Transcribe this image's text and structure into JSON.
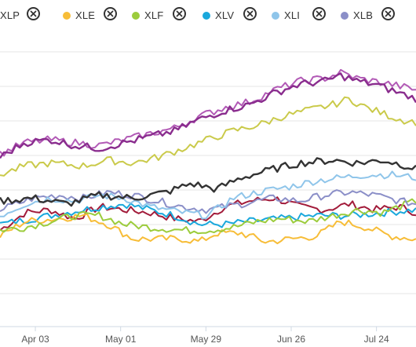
{
  "legend": [
    {
      "label": "XLP",
      "color": "#333333",
      "icon": "close-circle-icon"
    },
    {
      "label": "XLE",
      "color": "#f7bd38",
      "icon": "close-circle-icon"
    },
    {
      "label": "XLF",
      "color": "#9ccc3c",
      "icon": "close-circle-icon"
    },
    {
      "label": "XLV",
      "color": "#1aa8dc",
      "icon": "close-circle-icon"
    },
    {
      "label": "XLI",
      "color": "#8fc5ea",
      "icon": "close-circle-icon"
    },
    {
      "label": "XLB",
      "color": "#8b8fc8",
      "icon": "close-circle-icon"
    }
  ],
  "chart_data": {
    "type": "line",
    "xlabel": "",
    "ylabel": "",
    "x_tick_labels": [
      "Apr 03",
      "May 01",
      "May 29",
      "Jun 26",
      "Jul 24"
    ],
    "grid": "horizontal",
    "legend_position": "top",
    "y_range_note": "no y tick labels visible; values are relative levels",
    "ylim": [
      0,
      100
    ],
    "xlim": [
      0,
      100
    ],
    "x_ticks": [
      8.5,
      29,
      49.5,
      70,
      90.5
    ],
    "series": [
      {
        "name": "XLP",
        "color": "#333333",
        "knots": [
          [
            0,
            43
          ],
          [
            8,
            44
          ],
          [
            16,
            42
          ],
          [
            24,
            45
          ],
          [
            32,
            44
          ],
          [
            40,
            46
          ],
          [
            46,
            49
          ],
          [
            52,
            47
          ],
          [
            58,
            51
          ],
          [
            66,
            54
          ],
          [
            72,
            56
          ],
          [
            80,
            57
          ],
          [
            86,
            56
          ],
          [
            92,
            57
          ],
          [
            98,
            55
          ],
          [
            100,
            54
          ]
        ]
      },
      {
        "name": "XLE",
        "color": "#f7bd38",
        "knots": [
          [
            0,
            31
          ],
          [
            6,
            36
          ],
          [
            14,
            37
          ],
          [
            20,
            38
          ],
          [
            26,
            35
          ],
          [
            32,
            30
          ],
          [
            38,
            30
          ],
          [
            44,
            30
          ],
          [
            48,
            29
          ],
          [
            52,
            32
          ],
          [
            58,
            32
          ],
          [
            64,
            29
          ],
          [
            70,
            30
          ],
          [
            76,
            31
          ],
          [
            82,
            36
          ],
          [
            88,
            34
          ],
          [
            94,
            31
          ],
          [
            100,
            30
          ]
        ]
      },
      {
        "name": "XLF",
        "color": "#9ccc3c",
        "knots": [
          [
            0,
            33
          ],
          [
            6,
            34
          ],
          [
            12,
            36
          ],
          [
            18,
            38
          ],
          [
            24,
            38
          ],
          [
            30,
            35
          ],
          [
            36,
            34
          ],
          [
            44,
            33
          ],
          [
            50,
            33
          ],
          [
            56,
            34
          ],
          [
            62,
            36
          ],
          [
            68,
            37
          ],
          [
            74,
            36
          ],
          [
            80,
            38
          ],
          [
            86,
            40
          ],
          [
            92,
            39
          ],
          [
            100,
            43
          ]
        ]
      },
      {
        "name": "XLV",
        "color": "#1aa8dc",
        "knots": [
          [
            0,
            35
          ],
          [
            8,
            37
          ],
          [
            16,
            39
          ],
          [
            24,
            41
          ],
          [
            30,
            42
          ],
          [
            36,
            40
          ],
          [
            42,
            38
          ],
          [
            48,
            35
          ],
          [
            54,
            35
          ],
          [
            60,
            36
          ],
          [
            68,
            37
          ],
          [
            76,
            38
          ],
          [
            84,
            38
          ],
          [
            92,
            39
          ],
          [
            100,
            40
          ]
        ]
      },
      {
        "name": "XLI",
        "color": "#8fc5ea",
        "knots": [
          [
            0,
            38
          ],
          [
            6,
            42
          ],
          [
            12,
            44
          ],
          [
            18,
            43
          ],
          [
            24,
            45
          ],
          [
            30,
            44
          ],
          [
            36,
            41
          ],
          [
            44,
            39
          ],
          [
            50,
            38
          ],
          [
            56,
            44
          ],
          [
            62,
            46
          ],
          [
            70,
            48
          ],
          [
            76,
            50
          ],
          [
            82,
            51
          ],
          [
            88,
            52
          ],
          [
            94,
            52
          ],
          [
            100,
            51
          ]
        ]
      },
      {
        "name": "XLB",
        "color": "#8b8fc8",
        "knots": [
          [
            0,
            40
          ],
          [
            8,
            44
          ],
          [
            14,
            45
          ],
          [
            20,
            44
          ],
          [
            26,
            46
          ],
          [
            32,
            45
          ],
          [
            38,
            43
          ],
          [
            44,
            41
          ],
          [
            50,
            40
          ],
          [
            58,
            42
          ],
          [
            66,
            44
          ],
          [
            72,
            43
          ],
          [
            78,
            45
          ],
          [
            84,
            46
          ],
          [
            90,
            45
          ],
          [
            96,
            43
          ],
          [
            100,
            42
          ]
        ]
      },
      {
        "name": "",
        "color": "#a21b3a",
        "knots": [
          [
            0,
            33
          ],
          [
            6,
            39
          ],
          [
            12,
            40
          ],
          [
            18,
            37
          ],
          [
            24,
            41
          ],
          [
            30,
            40
          ],
          [
            36,
            39
          ],
          [
            42,
            37
          ],
          [
            48,
            36
          ],
          [
            54,
            41
          ],
          [
            60,
            43
          ],
          [
            66,
            44
          ],
          [
            72,
            41
          ],
          [
            78,
            40
          ],
          [
            84,
            42
          ],
          [
            90,
            40
          ],
          [
            96,
            41
          ],
          [
            100,
            39
          ]
        ]
      },
      {
        "name": "",
        "color": "#caca4a",
        "knots": [
          [
            0,
            52
          ],
          [
            6,
            55
          ],
          [
            12,
            56
          ],
          [
            20,
            55
          ],
          [
            26,
            57
          ],
          [
            32,
            56
          ],
          [
            38,
            58
          ],
          [
            44,
            61
          ],
          [
            50,
            64
          ],
          [
            56,
            67
          ],
          [
            62,
            69
          ],
          [
            68,
            72
          ],
          [
            74,
            74
          ],
          [
            80,
            76
          ],
          [
            84,
            78
          ],
          [
            88,
            75
          ],
          [
            92,
            73
          ],
          [
            96,
            71
          ],
          [
            100,
            70
          ]
        ]
      },
      {
        "name": "",
        "color": "#8a2d8e",
        "knots": [
          [
            0,
            58
          ],
          [
            6,
            63
          ],
          [
            12,
            64
          ],
          [
            18,
            62
          ],
          [
            24,
            61
          ],
          [
            30,
            63
          ],
          [
            36,
            65
          ],
          [
            42,
            67
          ],
          [
            48,
            71
          ],
          [
            54,
            74
          ],
          [
            60,
            76
          ],
          [
            66,
            80
          ],
          [
            72,
            83
          ],
          [
            78,
            84
          ],
          [
            82,
            86
          ],
          [
            86,
            84
          ],
          [
            90,
            83
          ],
          [
            94,
            81
          ],
          [
            100,
            78
          ]
        ]
      },
      {
        "name": "",
        "color": "#b25ab6",
        "knots": [
          [
            0,
            59
          ],
          [
            6,
            63
          ],
          [
            12,
            64
          ],
          [
            18,
            63
          ],
          [
            24,
            62
          ],
          [
            30,
            64
          ],
          [
            36,
            66
          ],
          [
            42,
            68
          ],
          [
            48,
            72
          ],
          [
            54,
            75
          ],
          [
            60,
            77
          ],
          [
            66,
            81
          ],
          [
            72,
            84
          ],
          [
            78,
            85
          ],
          [
            82,
            87
          ],
          [
            86,
            85
          ],
          [
            90,
            84
          ],
          [
            94,
            83
          ],
          [
            100,
            81
          ]
        ]
      }
    ]
  }
}
